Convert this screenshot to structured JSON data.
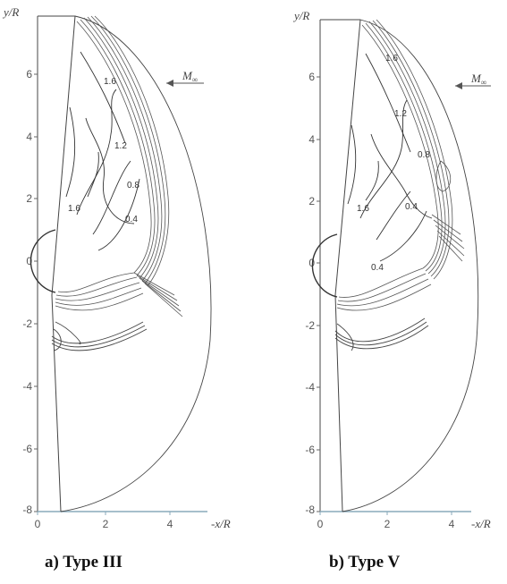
{
  "panels": [
    {
      "caption": "a) Type III",
      "y_label": "y/R",
      "x_label": "-x/R",
      "mach_label": "M",
      "mach_subscript": "∞",
      "y_ticks": [
        "6",
        "4",
        "2",
        "0",
        "-2",
        "-4",
        "-6",
        "-8"
      ],
      "x_ticks": [
        "0",
        "2",
        "4"
      ],
      "contour_labels": [
        "1.6",
        "1.2",
        "0.8",
        "0.4",
        "1.6"
      ]
    },
    {
      "caption": "b) Type V",
      "y_label": "y/R",
      "x_label": "-x/R",
      "mach_label": "M",
      "mach_subscript": "∞",
      "y_ticks": [
        "6",
        "4",
        "2",
        "0",
        "-2",
        "-4",
        "-6",
        "-8"
      ],
      "x_ticks": [
        "0",
        "2",
        "4"
      ],
      "contour_labels": [
        "1.6",
        "1.2",
        "0.8",
        "0.4",
        "1.6",
        "0.4"
      ]
    }
  ]
}
